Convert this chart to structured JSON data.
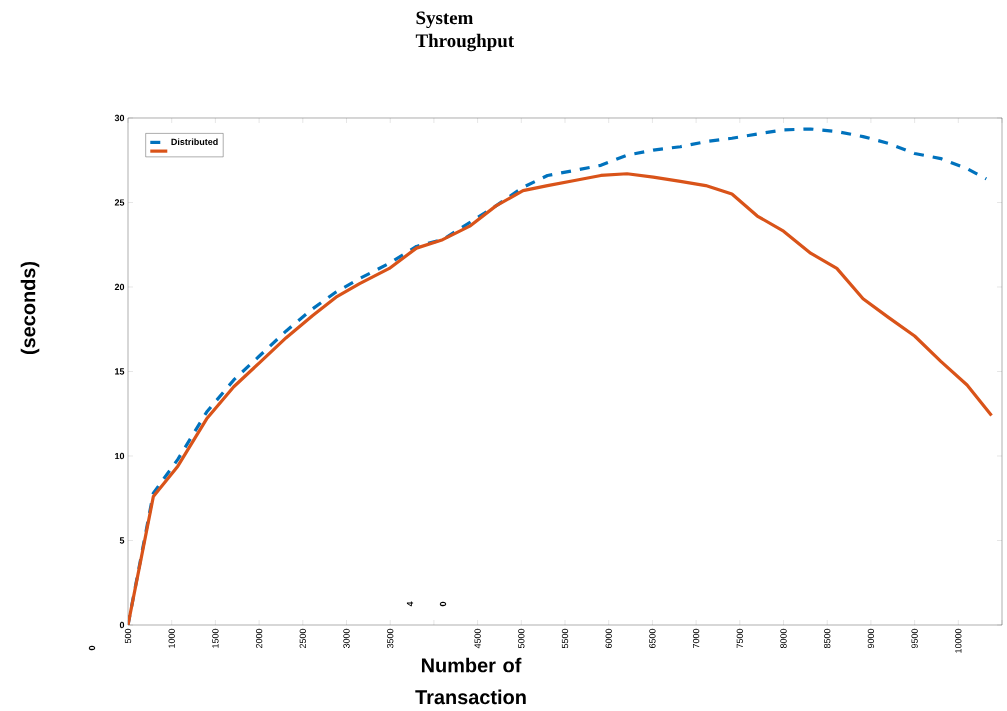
{
  "chart_data": {
    "type": "line",
    "title": "System Throughput",
    "xlabel": "Number of Transaction",
    "ylabel": "(seconds)",
    "xlim": [
      500,
      10500
    ],
    "ylim": [
      0,
      30
    ],
    "xticks": [
      500,
      1000,
      1500,
      2000,
      2500,
      3000,
      3500,
      {
        "value": 4000,
        "label": null
      },
      4500,
      5000,
      5500,
      6000,
      6500,
      7000,
      7500,
      8000,
      8500,
      9000,
      9500,
      10000,
      {
        "value": 10500,
        "label": null
      }
    ],
    "yticks": [
      0,
      5,
      10,
      15,
      20,
      25,
      30
    ],
    "legend": "top left",
    "annotations": [
      "0",
      "4",
      "0"
    ],
    "series": [
      {
        "name": "Distributed",
        "color": "#0072bd",
        "line_style": "dashed",
        "x": [
          500,
          790,
          1070,
          1400,
          1710,
          2000,
          2310,
          2610,
          2880,
          3150,
          3490,
          3800,
          4100,
          4410,
          4710,
          5020,
          5300,
          5610,
          5910,
          6210,
          6510,
          6820,
          7110,
          7410,
          7700,
          8000,
          8310,
          8610,
          8910,
          9200,
          9500,
          9800,
          10100,
          10320
        ],
        "values": [
          0,
          7.8,
          9.8,
          12.6,
          14.5,
          15.9,
          17.4,
          18.7,
          19.7,
          20.5,
          21.4,
          22.4,
          22.8,
          null,
          24.8,
          25.9,
          26.6,
          26.9,
          27.2,
          27.8,
          28.1,
          28.3,
          28.6,
          28.8,
          29.05,
          29.3,
          29.35,
          29.2,
          28.9,
          28.5,
          27.9,
          27.6,
          27.0,
          26.4
        ]
      },
      {
        "color": "#d95319",
        "line_style": "solid",
        "x": [
          500,
          790,
          1070,
          1400,
          1710,
          2000,
          2310,
          2610,
          2880,
          3150,
          3490,
          3800,
          4100,
          4410,
          4710,
          5020,
          5300,
          5610,
          5910,
          6210,
          6510,
          6820,
          7110,
          7410,
          7700,
          8000,
          8310,
          8610,
          8910,
          9200,
          9500,
          9800,
          10100,
          10380
        ],
        "values": [
          0,
          7.6,
          9.4,
          12.2,
          14.1,
          15.5,
          17.0,
          18.3,
          19.4,
          20.2,
          21.1,
          22.3,
          22.8,
          23.6,
          24.8,
          25.7,
          26.0,
          26.3,
          26.6,
          26.7,
          26.5,
          26.25,
          26.0,
          25.5,
          24.2,
          23.3,
          22.0,
          21.1,
          19.3,
          18.2,
          17.1,
          15.6,
          14.2,
          12.4
        ]
      }
    ]
  }
}
